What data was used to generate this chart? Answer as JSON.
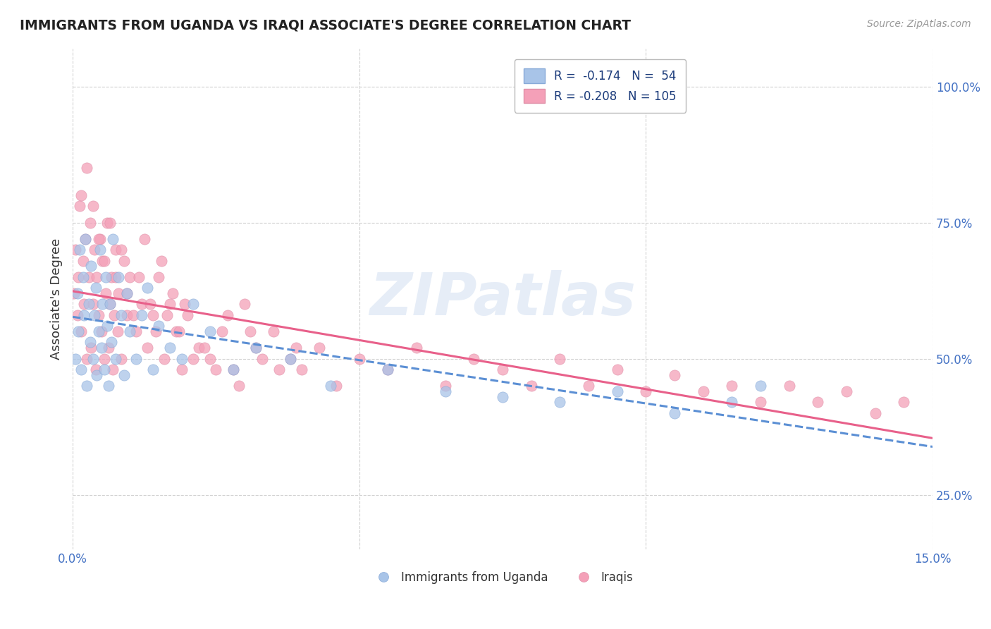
{
  "title": "IMMIGRANTS FROM UGANDA VS IRAQI ASSOCIATE'S DEGREE CORRELATION CHART",
  "source": "Source: ZipAtlas.com",
  "ylabel": "Associate's Degree",
  "xlim": [
    0.0,
    15.0
  ],
  "ylim": [
    15.0,
    107.0
  ],
  "yticks": [
    25.0,
    50.0,
    75.0,
    100.0
  ],
  "xticks_show": [
    0.0,
    15.0
  ],
  "xticks_grid": [
    0.0,
    5.0,
    10.0,
    15.0
  ],
  "legend_label1": "R =  -0.174   N =  54",
  "legend_label2": "R = -0.208   N = 105",
  "legend_label_bottom1": "Immigrants from Uganda",
  "legend_label_bottom2": "Iraqis",
  "color_uganda": "#a8c4e8",
  "color_iraq": "#f4a0b8",
  "color_uganda_line": "#5b8fd4",
  "color_iraq_line": "#e8608a",
  "watermark": "ZIPatlas",
  "uganda_x": [
    0.05,
    0.08,
    0.1,
    0.12,
    0.15,
    0.18,
    0.2,
    0.22,
    0.25,
    0.28,
    0.3,
    0.32,
    0.35,
    0.38,
    0.4,
    0.42,
    0.45,
    0.48,
    0.5,
    0.52,
    0.55,
    0.58,
    0.6,
    0.62,
    0.65,
    0.68,
    0.7,
    0.75,
    0.8,
    0.85,
    0.9,
    0.95,
    1.0,
    1.1,
    1.2,
    1.3,
    1.4,
    1.5,
    1.7,
    1.9,
    2.1,
    2.4,
    2.8,
    3.2,
    3.8,
    4.5,
    5.5,
    6.5,
    7.5,
    8.5,
    9.5,
    10.5,
    11.5,
    12.0
  ],
  "uganda_y": [
    50,
    62,
    55,
    70,
    48,
    65,
    58,
    72,
    45,
    60,
    53,
    67,
    50,
    58,
    63,
    47,
    55,
    70,
    52,
    60,
    48,
    65,
    56,
    45,
    60,
    53,
    72,
    50,
    65,
    58,
    47,
    62,
    55,
    50,
    58,
    63,
    48,
    56,
    52,
    50,
    60,
    55,
    48,
    52,
    50,
    45,
    48,
    44,
    43,
    42,
    44,
    40,
    42,
    45
  ],
  "iraq_x": [
    0.02,
    0.05,
    0.08,
    0.1,
    0.12,
    0.15,
    0.18,
    0.2,
    0.22,
    0.25,
    0.28,
    0.3,
    0.32,
    0.35,
    0.38,
    0.4,
    0.42,
    0.45,
    0.48,
    0.5,
    0.52,
    0.55,
    0.58,
    0.6,
    0.62,
    0.65,
    0.68,
    0.7,
    0.72,
    0.75,
    0.78,
    0.8,
    0.85,
    0.9,
    0.95,
    1.0,
    1.1,
    1.2,
    1.3,
    1.4,
    1.5,
    1.6,
    1.7,
    1.8,
    1.9,
    2.0,
    2.2,
    2.4,
    2.6,
    2.8,
    3.0,
    3.2,
    3.5,
    3.8,
    4.0,
    4.3,
    4.6,
    5.0,
    5.5,
    6.0,
    6.5,
    7.0,
    7.5,
    8.0,
    8.5,
    9.0,
    9.5,
    10.0,
    10.5,
    11.0,
    11.5,
    12.0,
    12.5,
    13.0,
    13.5,
    14.0,
    14.5,
    0.15,
    0.25,
    0.35,
    0.45,
    0.55,
    0.65,
    0.75,
    0.85,
    0.95,
    1.05,
    1.15,
    1.25,
    1.35,
    1.45,
    1.55,
    1.65,
    1.75,
    1.85,
    1.95,
    2.1,
    2.3,
    2.5,
    2.7,
    2.9,
    3.1,
    3.3,
    3.6,
    3.9
  ],
  "iraq_y": [
    62,
    70,
    58,
    65,
    78,
    55,
    68,
    60,
    72,
    50,
    65,
    75,
    52,
    60,
    70,
    48,
    65,
    58,
    72,
    55,
    68,
    50,
    62,
    75,
    52,
    60,
    65,
    48,
    58,
    70,
    55,
    62,
    50,
    68,
    58,
    65,
    55,
    60,
    52,
    58,
    65,
    50,
    60,
    55,
    48,
    58,
    52,
    50,
    55,
    48,
    60,
    52,
    55,
    50,
    48,
    52,
    45,
    50,
    48,
    52,
    45,
    50,
    48,
    45,
    50,
    45,
    48,
    44,
    47,
    44,
    45,
    42,
    45,
    42,
    44,
    40,
    42,
    80,
    85,
    78,
    72,
    68,
    75,
    65,
    70,
    62,
    58,
    65,
    72,
    60,
    55,
    68,
    58,
    62,
    55,
    60,
    50,
    52,
    48,
    58,
    45,
    55,
    50,
    48,
    52
  ]
}
